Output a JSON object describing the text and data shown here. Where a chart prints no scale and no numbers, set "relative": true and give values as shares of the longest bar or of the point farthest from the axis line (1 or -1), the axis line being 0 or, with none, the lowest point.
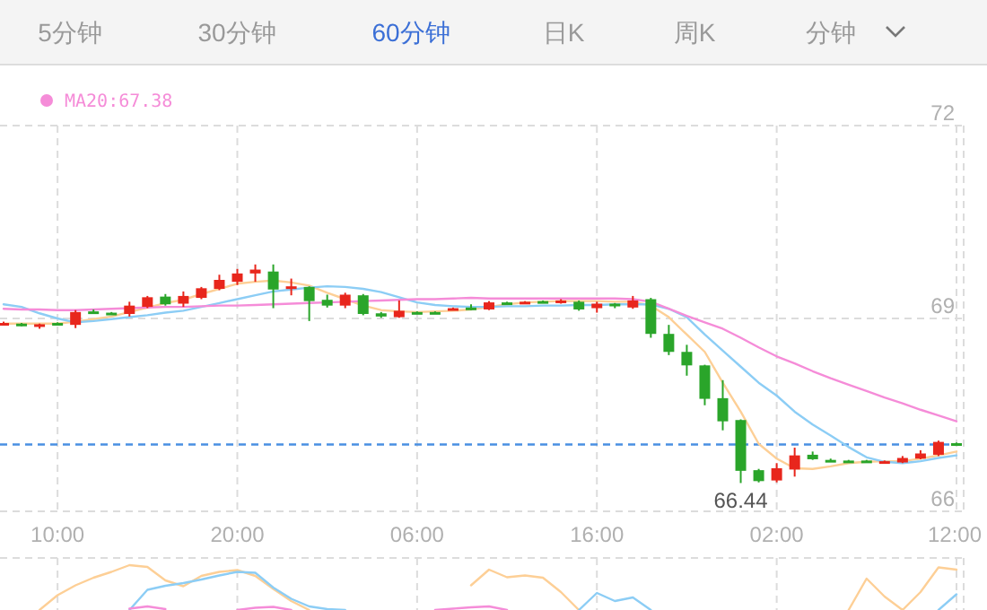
{
  "chart_data": [
    {
      "type": "candlestick",
      "annotations": [
        "5分钟",
        "30分钟",
        "60分钟",
        "日K",
        "周K",
        "分钟",
        {
          "text": "66.44",
          "y": 66.44
        }
      ],
      "categories": [
        null,
        null,
        null,
        "10:00",
        null,
        null,
        null,
        null,
        null,
        null,
        null,
        null,
        null,
        "20:00",
        null,
        null,
        null,
        null,
        null,
        null,
        null,
        null,
        null,
        "06:00",
        null,
        null,
        null,
        null,
        null,
        null,
        null,
        null,
        null,
        "16:00",
        null,
        null,
        null,
        null,
        null,
        null,
        null,
        null,
        null,
        "02:00",
        null,
        null,
        null,
        null,
        null,
        null,
        null,
        null,
        null,
        "12:00"
      ],
      "ohlc": [
        [
          68.91,
          68.95,
          68.9,
          68.93
        ],
        [
          68.92,
          68.93,
          68.88,
          68.89
        ],
        [
          68.87,
          68.92,
          68.84,
          68.91
        ],
        [
          68.93,
          68.94,
          68.9,
          68.91
        ],
        [
          68.9,
          69.13,
          68.85,
          69.1
        ],
        [
          69.11,
          69.14,
          69.07,
          69.09
        ],
        [
          69.09,
          69.1,
          69.06,
          69.07
        ],
        [
          69.07,
          69.26,
          69.03,
          69.2
        ],
        [
          69.18,
          69.35,
          69.16,
          69.33
        ],
        [
          69.34,
          69.38,
          69.2,
          69.22
        ],
        [
          69.23,
          69.42,
          69.18,
          69.35
        ],
        [
          69.32,
          69.49,
          69.3,
          69.47
        ],
        [
          69.46,
          69.68,
          69.44,
          69.6
        ],
        [
          69.57,
          69.77,
          69.52,
          69.7
        ],
        [
          69.7,
          69.84,
          69.57,
          69.76
        ],
        [
          69.73,
          69.84,
          69.16,
          69.45
        ],
        [
          69.46,
          69.62,
          69.36,
          69.5
        ],
        [
          69.49,
          69.5,
          68.96,
          69.27
        ],
        [
          69.29,
          69.37,
          69.17,
          69.2
        ],
        [
          69.2,
          69.4,
          69.16,
          69.37
        ],
        [
          69.36,
          69.38,
          69.05,
          69.07
        ],
        [
          69.08,
          69.1,
          69.01,
          69.03
        ],
        [
          69.02,
          69.28,
          69.01,
          69.12
        ],
        [
          69.1,
          69.11,
          69.07,
          69.08
        ],
        [
          69.1,
          69.11,
          69.08,
          69.09
        ],
        [
          69.14,
          69.17,
          69.13,
          69.16
        ],
        [
          69.17,
          69.22,
          69.13,
          69.14
        ],
        [
          69.14,
          69.27,
          69.13,
          69.25
        ],
        [
          69.25,
          69.26,
          69.23,
          69.24
        ],
        [
          69.24,
          69.27,
          69.23,
          69.26
        ],
        [
          69.27,
          69.28,
          69.24,
          69.25
        ],
        [
          69.24,
          69.3,
          69.23,
          69.28
        ],
        [
          69.26,
          69.28,
          69.12,
          69.14
        ],
        [
          69.16,
          69.26,
          69.09,
          69.23
        ],
        [
          69.23,
          69.24,
          69.16,
          69.2
        ],
        [
          69.17,
          69.35,
          69.15,
          69.28
        ],
        [
          69.3,
          69.32,
          68.7,
          68.76
        ],
        [
          68.76,
          68.9,
          68.43,
          68.48
        ],
        [
          68.48,
          68.59,
          68.11,
          68.27
        ],
        [
          68.27,
          68.28,
          67.65,
          67.75
        ],
        [
          67.76,
          68.04,
          67.26,
          67.4
        ],
        [
          67.42,
          67.43,
          66.44,
          66.63
        ],
        [
          66.64,
          66.66,
          66.45,
          66.47
        ],
        [
          66.48,
          66.75,
          66.45,
          66.67
        ],
        [
          66.65,
          66.99,
          66.54,
          66.87
        ],
        [
          66.88,
          66.93,
          66.8,
          66.81
        ],
        [
          66.8,
          66.82,
          66.77,
          66.78
        ],
        [
          66.79,
          66.8,
          66.77,
          66.78
        ],
        [
          66.79,
          66.8,
          66.77,
          66.78
        ],
        [
          66.76,
          66.79,
          66.75,
          66.78
        ],
        [
          66.76,
          66.86,
          66.75,
          66.83
        ],
        [
          66.82,
          66.95,
          66.81,
          66.9
        ],
        [
          66.88,
          67.1,
          66.86,
          67.08
        ],
        [
          67.06,
          67.07,
          67.03,
          67.04
        ]
      ],
      "colors": [
        "#e8261c",
        "#2aa52a",
        "#e8261c",
        "#2aa52a",
        "#e8261c",
        "#2aa52a",
        "#2aa52a",
        "#e8261c",
        "#e8261c",
        "#2aa52a",
        "#e8261c",
        "#e8261c",
        "#e8261c",
        "#e8261c",
        "#e8261c",
        "#2aa52a",
        "#e8261c",
        "#2aa52a",
        "#2aa52a",
        "#e8261c",
        "#2aa52a",
        "#2aa52a",
        "#e8261c",
        "#2aa52a",
        "#2aa52a",
        "#e8261c",
        "#2aa52a",
        "#e8261c",
        "#2aa52a",
        "#e8261c",
        "#2aa52a",
        "#e8261c",
        "#2aa52a",
        "#e8261c",
        "#2aa52a",
        "#e8261c",
        "#2aa52a",
        "#2aa52a",
        "#2aa52a",
        "#2aa52a",
        "#2aa52a",
        "#2aa52a",
        "#2aa52a",
        "#e8261c",
        "#e8261c",
        "#2aa52a",
        "#2aa52a",
        "#2aa52a",
        "#2aa52a",
        "#e8261c",
        "#e8261c",
        "#e8261c",
        "#e8261c",
        "#2aa52a"
      ],
      "series": [
        {
          "type": "line",
          "color": "#fdcf96",
          "values": [
            68.92,
            68.92,
            68.92,
            68.92,
            68.95,
            68.99,
            69.03,
            69.1,
            69.17,
            69.24,
            69.29,
            69.38,
            69.46,
            69.54,
            69.57,
            69.59,
            69.56,
            69.51,
            69.4,
            69.3,
            69.2,
            69.13,
            69.11,
            69.1,
            69.11,
            69.12,
            69.14,
            69.18,
            69.22,
            69.25,
            69.26,
            69.27,
            69.27,
            69.27,
            69.26,
            69.26,
            69.2,
            69.02,
            68.75,
            68.48,
            68.0,
            67.55,
            67.05,
            66.82,
            66.67,
            66.66,
            66.7,
            66.75,
            66.77,
            66.78,
            66.78,
            66.82,
            66.87,
            66.93
          ]
        },
        {
          "type": "line",
          "color": "#8ccdf5",
          "values": [
            69.22,
            69.18,
            69.08,
            69.0,
            68.94,
            68.96,
            68.99,
            69.02,
            69.05,
            69.09,
            69.12,
            69.18,
            69.24,
            69.3,
            69.36,
            69.42,
            69.45,
            69.48,
            69.5,
            69.49,
            69.46,
            69.41,
            69.33,
            69.25,
            69.21,
            69.19,
            69.18,
            69.18,
            69.19,
            69.19,
            69.2,
            69.2,
            69.21,
            69.21,
            69.22,
            69.22,
            69.22,
            69.15,
            69.02,
            68.75,
            68.5,
            68.25,
            68.0,
            67.8,
            67.55,
            67.35,
            67.18,
            67.0,
            66.84,
            66.77,
            66.75,
            66.78,
            66.83,
            66.87
          ]
        },
        {
          "type": "line",
          "name": "MA20:67.38",
          "color": "#f58cd8",
          "values": [
            69.15,
            69.14,
            69.14,
            69.13,
            69.13,
            69.14,
            69.15,
            69.16,
            69.17,
            69.18,
            69.18,
            69.19,
            69.2,
            69.2,
            69.21,
            69.22,
            69.23,
            69.24,
            69.25,
            69.26,
            69.27,
            69.28,
            69.29,
            69.3,
            69.3,
            69.31,
            69.32,
            69.31,
            69.31,
            69.31,
            69.31,
            69.31,
            69.31,
            69.31,
            69.31,
            69.3,
            69.26,
            69.15,
            69.04,
            68.94,
            68.84,
            68.7,
            68.55,
            68.41,
            68.3,
            68.18,
            68.07,
            67.97,
            67.87,
            67.77,
            67.68,
            67.58,
            67.49,
            67.4
          ]
        }
      ],
      "ylim": [
        66,
        72
      ],
      "yticks": [
        66,
        69,
        72
      ],
      "ref_lines": [
        {
          "axis": "y",
          "value": 67.04,
          "color": "#4a90e2",
          "line_style": "dashed"
        }
      ],
      "grid": true,
      "legend": "top left"
    },
    {
      "type": "line",
      "relative": true,
      "grid": true,
      "categories": [
        null,
        null,
        null,
        null,
        null,
        null,
        null,
        null,
        null,
        null,
        null,
        null,
        null,
        null,
        null,
        null,
        null,
        null,
        null,
        null,
        null,
        null,
        null,
        null,
        null,
        null,
        null,
        null,
        null,
        null,
        null,
        null,
        null,
        null,
        null,
        null,
        null,
        null,
        null,
        null,
        null,
        null,
        null,
        null,
        null,
        null,
        null,
        null,
        null,
        null,
        null,
        null,
        null,
        null
      ],
      "series": [
        {
          "color": "#fdcf96",
          "values": [
            null,
            null,
            0,
            0.33,
            0.55,
            0.72,
            0.85,
            1.0,
            0.96,
            0.66,
            0.53,
            0.76,
            0.85,
            0.89,
            0.76,
            0.47,
            0.2,
            0,
            null,
            null,
            null,
            null,
            null,
            null,
            null,
            null,
            0.55,
            0.9,
            0.73,
            0.77,
            0.72,
            0.4,
            0,
            null,
            null,
            null,
            null,
            null,
            null,
            null,
            null,
            null,
            null,
            null,
            null,
            null,
            null,
            0,
            0.7,
            0.3,
            0,
            0.4,
            0.95,
            0.9
          ]
        },
        {
          "color": "#8ccdf5",
          "values": [
            null,
            null,
            null,
            null,
            null,
            null,
            null,
            0,
            0.45,
            0.54,
            0.6,
            0.68,
            0.77,
            0.85,
            0.83,
            0.5,
            0.25,
            0.08,
            0.02,
            0,
            null,
            null,
            null,
            null,
            null,
            null,
            null,
            null,
            null,
            null,
            null,
            null,
            0,
            0.38,
            0.2,
            0.28,
            0,
            null,
            null,
            null,
            null,
            null,
            null,
            null,
            null,
            null,
            null,
            null,
            null,
            null,
            null,
            null,
            0,
            0.35
          ]
        },
        {
          "color": "#f58cd8",
          "values": [
            null,
            null,
            null,
            null,
            null,
            null,
            null,
            0.03,
            0.08,
            0.02,
            null,
            null,
            null,
            0,
            0.05,
            0.07,
            0,
            null,
            null,
            null,
            null,
            null,
            null,
            null,
            0,
            0.03,
            0.06,
            0.08,
            0,
            null,
            null,
            null,
            null,
            null,
            null,
            null,
            null,
            null,
            null,
            null,
            null,
            null,
            null,
            null,
            null,
            null,
            null,
            null,
            null,
            null,
            null,
            null,
            null,
            null
          ]
        }
      ]
    }
  ]
}
